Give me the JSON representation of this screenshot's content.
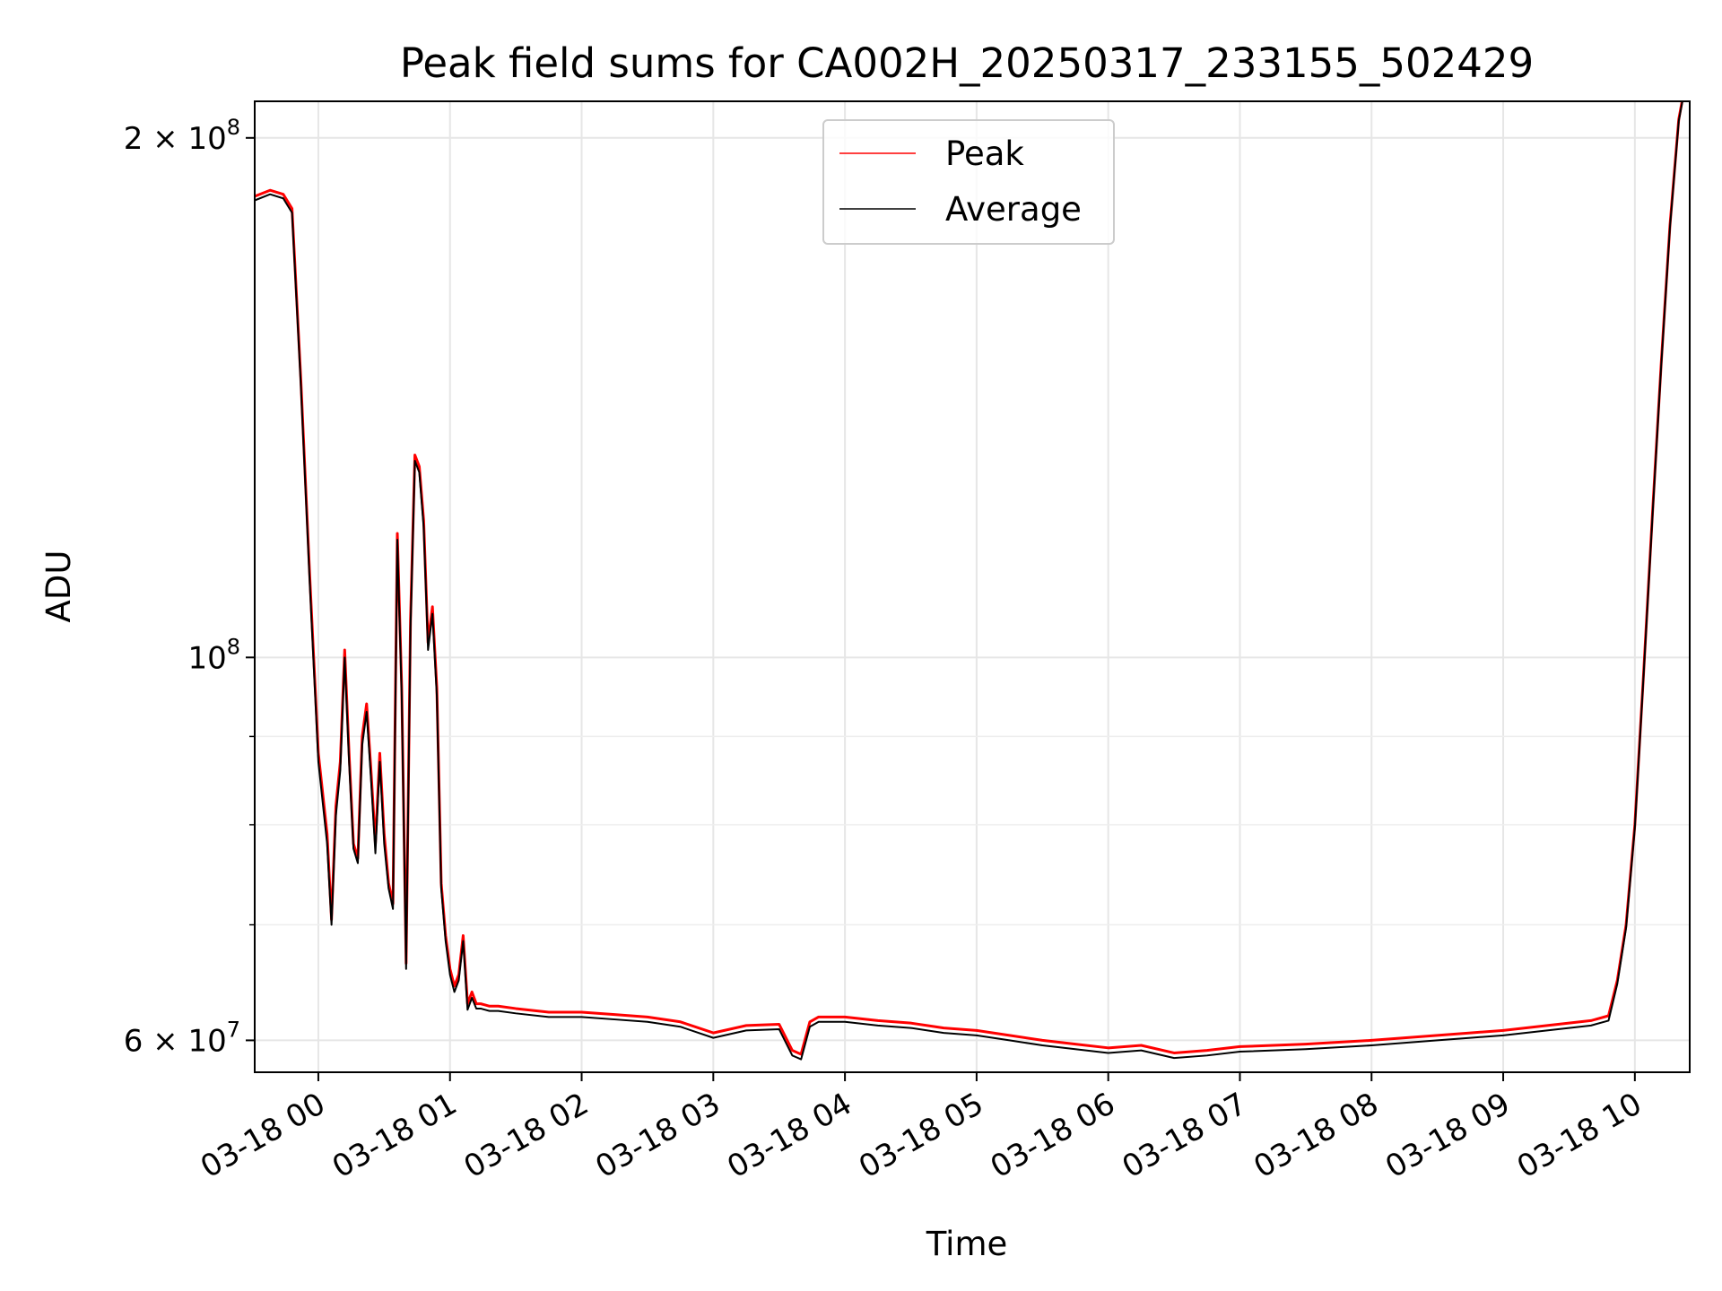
{
  "chart_data": {
    "type": "line",
    "title": "Peak field sums for CA002H_20250317_233155_502429",
    "xlabel": "Time",
    "ylabel": "ADU",
    "yscale": "log",
    "grid": true,
    "legend_position": "upper center",
    "xlim": [
      "2025-03-17 23:31",
      "2025-03-18 10:25"
    ],
    "ylim": [
      57500000,
      210000000
    ],
    "x_ticks": [
      "03-18 00",
      "03-18 01",
      "03-18 02",
      "03-18 03",
      "03-18 04",
      "03-18 05",
      "03-18 06",
      "03-18 07",
      "03-18 08",
      "03-18 09",
      "03-18 10"
    ],
    "y_ticks": [
      {
        "value": 200000000,
        "label": "2 × 10",
        "exp": "8"
      },
      {
        "value": 100000000,
        "label": "10",
        "exp": "8"
      },
      {
        "value": 60000000,
        "label": "6 × 10",
        "exp": "7"
      }
    ],
    "x": [
      "2025-03-17 23:31",
      "2025-03-17 23:38",
      "2025-03-17 23:44",
      "2025-03-17 23:48",
      "2025-03-17 23:52",
      "2025-03-17 23:56",
      "2025-03-18 00:00",
      "2025-03-18 00:04",
      "2025-03-18 00:06",
      "2025-03-18 00:08",
      "2025-03-18 00:10",
      "2025-03-18 00:12",
      "2025-03-18 00:14",
      "2025-03-18 00:16",
      "2025-03-18 00:18",
      "2025-03-18 00:20",
      "2025-03-18 00:22",
      "2025-03-18 00:24",
      "2025-03-18 00:26",
      "2025-03-18 00:28",
      "2025-03-18 00:30",
      "2025-03-18 00:32",
      "2025-03-18 00:34",
      "2025-03-18 00:36",
      "2025-03-18 00:38",
      "2025-03-18 00:40",
      "2025-03-18 00:42",
      "2025-03-18 00:44",
      "2025-03-18 00:46",
      "2025-03-18 00:48",
      "2025-03-18 00:50",
      "2025-03-18 00:52",
      "2025-03-18 00:54",
      "2025-03-18 00:56",
      "2025-03-18 00:58",
      "2025-03-18 01:00",
      "2025-03-18 01:02",
      "2025-03-18 01:04",
      "2025-03-18 01:06",
      "2025-03-18 01:08",
      "2025-03-18 01:10",
      "2025-03-18 01:12",
      "2025-03-18 01:14",
      "2025-03-18 01:16",
      "2025-03-18 01:18",
      "2025-03-18 01:22",
      "2025-03-18 01:30",
      "2025-03-18 01:45",
      "2025-03-18 02:00",
      "2025-03-18 02:15",
      "2025-03-18 02:30",
      "2025-03-18 02:45",
      "2025-03-18 03:00",
      "2025-03-18 03:15",
      "2025-03-18 03:30",
      "2025-03-18 03:36",
      "2025-03-18 03:40",
      "2025-03-18 03:44",
      "2025-03-18 03:48",
      "2025-03-18 04:00",
      "2025-03-18 04:15",
      "2025-03-18 04:30",
      "2025-03-18 04:45",
      "2025-03-18 05:00",
      "2025-03-18 05:15",
      "2025-03-18 05:30",
      "2025-03-18 05:45",
      "2025-03-18 06:00",
      "2025-03-18 06:15",
      "2025-03-18 06:30",
      "2025-03-18 06:45",
      "2025-03-18 07:00",
      "2025-03-18 07:30",
      "2025-03-18 08:00",
      "2025-03-18 08:30",
      "2025-03-18 08:45",
      "2025-03-18 09:00",
      "2025-03-18 09:15",
      "2025-03-18 09:30",
      "2025-03-18 09:40",
      "2025-03-18 09:48",
      "2025-03-18 09:52",
      "2025-03-18 09:56",
      "2025-03-18 10:00",
      "2025-03-18 10:04",
      "2025-03-18 10:08",
      "2025-03-18 10:12",
      "2025-03-18 10:16",
      "2025-03-18 10:20",
      "2025-03-18 10:23"
    ],
    "series": [
      {
        "name": "Peak",
        "color": "#ff0000",
        "values": [
          185000000,
          186500000,
          185500000,
          182000000,
          145000000,
          112000000,
          88000000,
          79000000,
          70500000,
          82000000,
          87000000,
          101000000,
          88000000,
          78000000,
          76500000,
          90000000,
          94000000,
          86000000,
          78000000,
          88000000,
          79000000,
          74000000,
          72000000,
          118000000,
          96000000,
          66500000,
          105000000,
          131000000,
          129000000,
          120000000,
          102000000,
          107000000,
          96000000,
          74000000,
          69000000,
          66000000,
          64500000,
          65500000,
          69000000,
          63000000,
          64000000,
          63000000,
          63000000,
          62900000,
          62800000,
          62800000,
          62600000,
          62300000,
          62300000,
          62100000,
          61900000,
          61500000,
          60600000,
          61200000,
          61300000,
          59200000,
          58900000,
          61500000,
          61900000,
          61900000,
          61600000,
          61400000,
          61000000,
          60800000,
          60400000,
          60000000,
          59700000,
          59400000,
          59600000,
          59000000,
          59200000,
          59500000,
          59700000,
          60000000,
          60400000,
          60600000,
          60800000,
          61100000,
          61400000,
          61600000,
          62000000,
          65000000,
          70000000,
          80000000,
          98000000,
          121000000,
          148000000,
          178000000,
          205000000,
          215000000
        ]
      },
      {
        "name": "Average",
        "color": "#000000",
        "values": [
          184000000,
          185500000,
          184500000,
          181000000,
          144000000,
          111000000,
          87000000,
          78000000,
          70000000,
          81000000,
          86000000,
          100000000,
          87000000,
          77500000,
          76000000,
          89000000,
          93000000,
          85000000,
          77000000,
          87000000,
          78000000,
          73500000,
          71500000,
          117000000,
          95000000,
          66000000,
          104000000,
          130000000,
          128000000,
          119000000,
          101000000,
          106000000,
          95000000,
          73500000,
          68500000,
          65500000,
          64000000,
          65000000,
          68500000,
          62500000,
          63500000,
          62600000,
          62600000,
          62500000,
          62400000,
          62400000,
          62200000,
          61900000,
          61900000,
          61700000,
          61500000,
          61100000,
          60200000,
          60800000,
          60900000,
          58800000,
          58500000,
          61100000,
          61500000,
          61500000,
          61200000,
          61000000,
          60600000,
          60400000,
          60000000,
          59600000,
          59300000,
          59000000,
          59200000,
          58600000,
          58800000,
          59100000,
          59300000,
          59600000,
          60000000,
          60200000,
          60400000,
          60700000,
          61000000,
          61200000,
          61600000,
          64700000,
          69700000,
          79700000,
          97700000,
          120500000,
          147500000,
          177500000,
          204500000,
          214500000
        ]
      }
    ]
  }
}
